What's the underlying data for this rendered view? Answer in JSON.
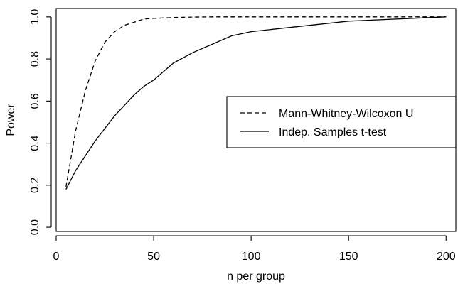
{
  "chart_data": {
    "type": "line",
    "xlabel": "n per group",
    "ylabel": "Power",
    "xlim": [
      0,
      205
    ],
    "ylim": [
      -0.02,
      1.04
    ],
    "x_ticks": [
      0,
      50,
      100,
      150,
      200
    ],
    "y_ticks": [
      0.0,
      0.2,
      0.4,
      0.6,
      0.8,
      1.0
    ],
    "x_tick_labels": [
      "0",
      "50",
      "100",
      "150",
      "200"
    ],
    "y_tick_labels": [
      "0.0",
      "0.2",
      "0.4",
      "0.6",
      "0.8",
      "1.0"
    ],
    "grid": false,
    "legend_position": "right",
    "series": [
      {
        "name": "Mann-Whitney-Wilcoxon U",
        "line_style": "dashed",
        "color": "#000000",
        "x": [
          5,
          10,
          15,
          20,
          25,
          30,
          35,
          40,
          45,
          50,
          60,
          70,
          80,
          90,
          100,
          150,
          200
        ],
        "y": [
          0.19,
          0.46,
          0.65,
          0.79,
          0.88,
          0.93,
          0.96,
          0.975,
          0.99,
          0.993,
          0.997,
          0.999,
          1.0,
          1.0,
          1.0,
          1.0,
          1.0
        ]
      },
      {
        "name": "Indep. Samples t-test",
        "line_style": "solid",
        "color": "#000000",
        "x": [
          5,
          10,
          15,
          20,
          25,
          30,
          35,
          40,
          45,
          50,
          60,
          70,
          80,
          90,
          100,
          150,
          200
        ],
        "y": [
          0.18,
          0.27,
          0.34,
          0.41,
          0.47,
          0.53,
          0.58,
          0.63,
          0.67,
          0.7,
          0.78,
          0.83,
          0.87,
          0.91,
          0.93,
          0.98,
          1.0
        ]
      }
    ]
  }
}
